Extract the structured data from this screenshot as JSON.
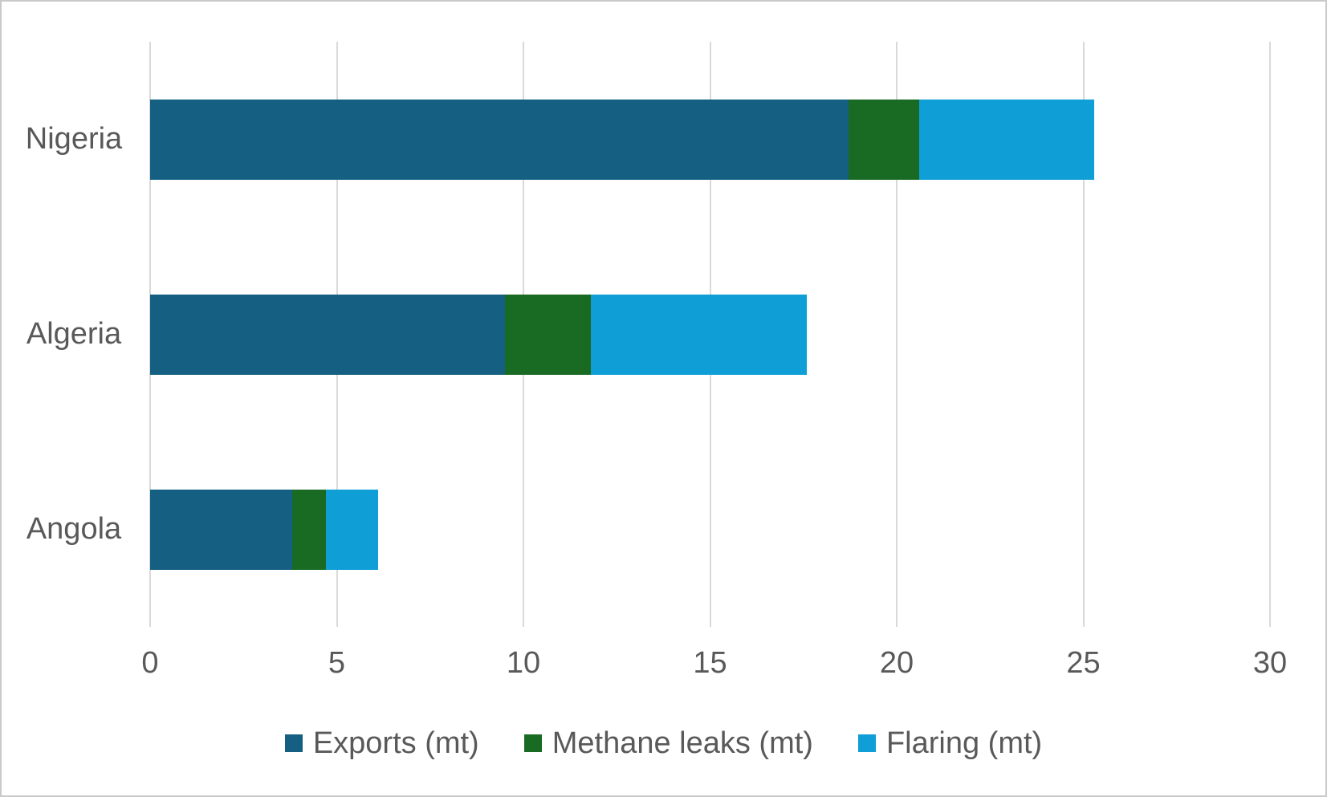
{
  "chart_data": {
    "type": "bar",
    "orientation": "horizontal",
    "stacked": true,
    "title": "",
    "xlabel": "",
    "ylabel": "",
    "categories": [
      "Nigeria",
      "Algeria",
      "Angola"
    ],
    "series": [
      {
        "name": "Exports (mt)",
        "color": "#156082",
        "values": [
          18.7,
          9.5,
          3.8
        ]
      },
      {
        "name": "Methane leaks (mt)",
        "color": "#196B24",
        "values": [
          1.9,
          2.3,
          0.9
        ]
      },
      {
        "name": "Flaring (mt)",
        "color": "#0F9ED5",
        "values": [
          4.7,
          5.8,
          1.4
        ]
      }
    ],
    "totals": [
      25.3,
      17.6,
      6.1
    ],
    "xlim": [
      0,
      30
    ],
    "x_ticks": [
      0,
      5,
      10,
      15,
      20,
      25,
      30
    ],
    "grid": true,
    "legend_position": "bottom"
  },
  "colors": {
    "text": "#595959",
    "gridline": "#D9D9D9",
    "background": "#FFFFFF",
    "border": "#C9C9C9"
  }
}
